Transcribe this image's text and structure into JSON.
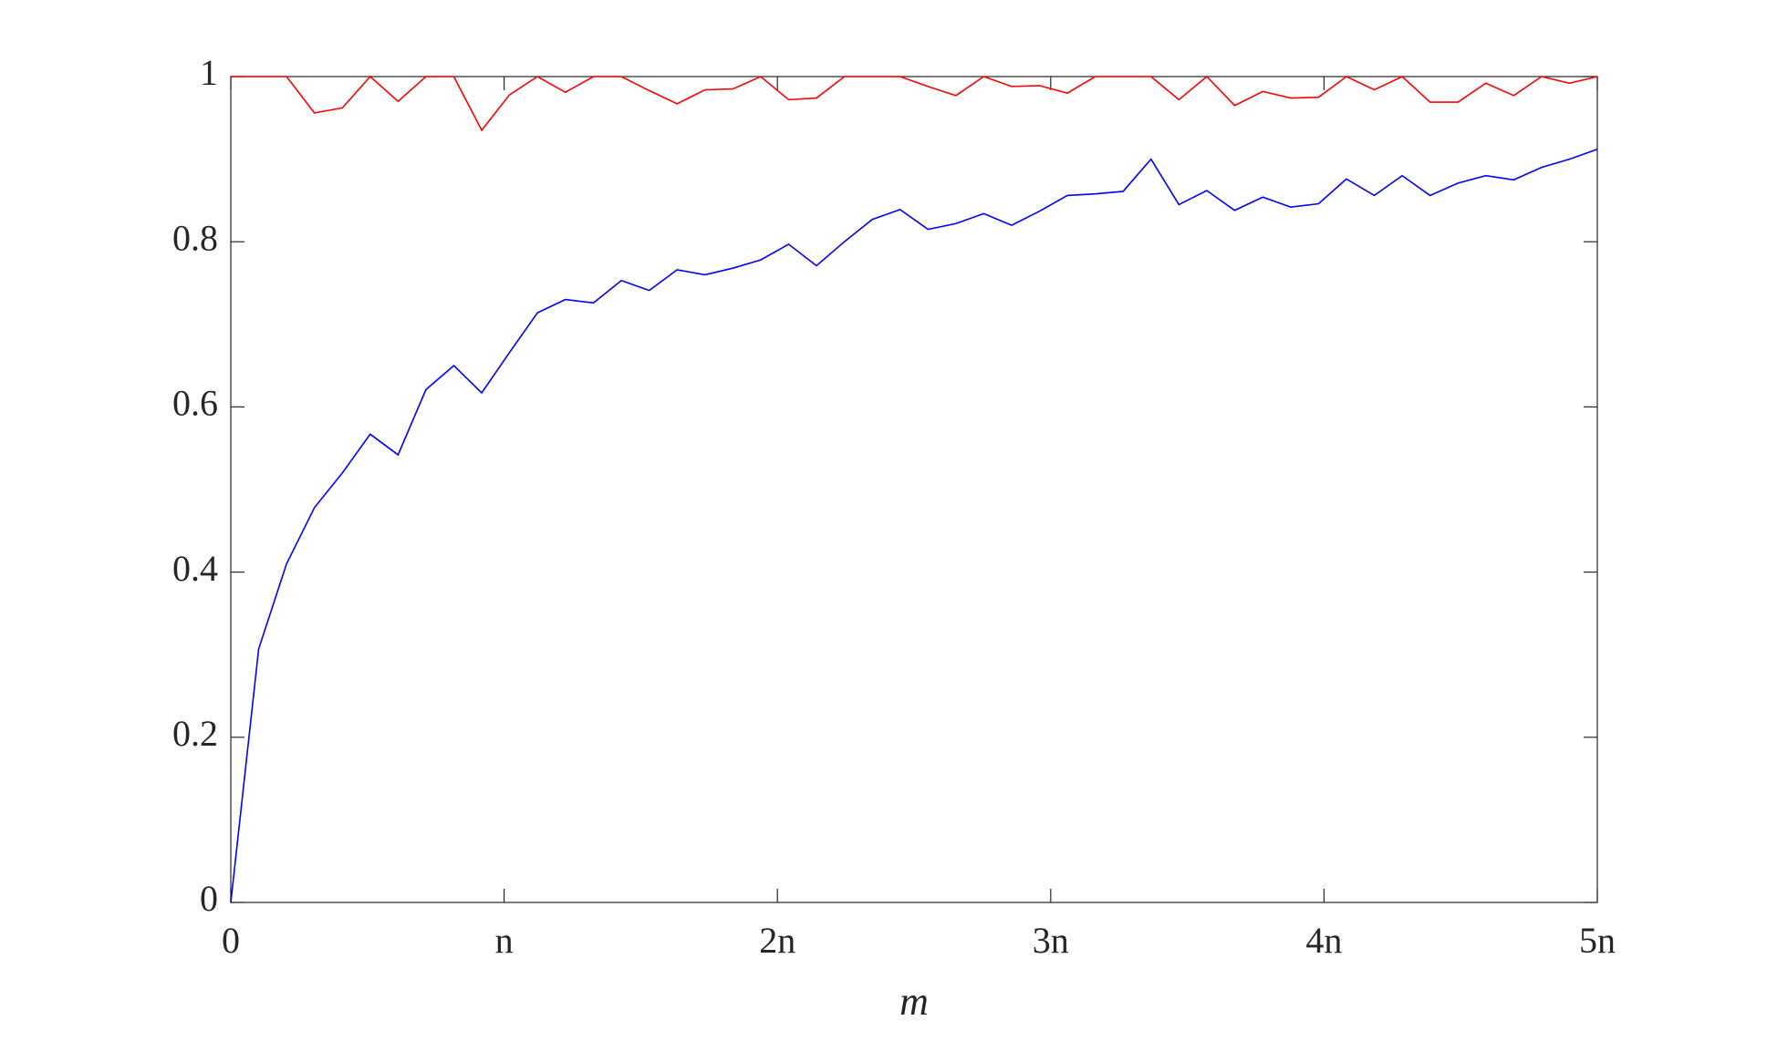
{
  "chart_data": {
    "type": "line",
    "xlabel": "m",
    "x": [
      0,
      0.102,
      0.204,
      0.306,
      0.408,
      0.51,
      0.612,
      0.714,
      0.816,
      0.918,
      1.02,
      1.122,
      1.224,
      1.327,
      1.429,
      1.531,
      1.633,
      1.735,
      1.837,
      1.939,
      2.041,
      2.143,
      2.245,
      2.347,
      2.449,
      2.551,
      2.653,
      2.755,
      2.857,
      2.959,
      3.061,
      3.163,
      3.265,
      3.367,
      3.469,
      3.571,
      3.673,
      3.776,
      3.878,
      3.98,
      4.082,
      4.184,
      4.286,
      4.388,
      4.49,
      4.592,
      4.694,
      4.796,
      4.898,
      5
    ],
    "series": [
      {
        "color": "#ff0000",
        "values": [
          1,
          1,
          1,
          0.956,
          0.962,
          1,
          0.97,
          1,
          1,
          0.935,
          0.978,
          1,
          0.981,
          1,
          1,
          0.983,
          0.967,
          0.984,
          0.985,
          1,
          0.972,
          0.974,
          1,
          1,
          1,
          0.988,
          0.977,
          1,
          0.988,
          0.989,
          0.98,
          1,
          1,
          1,
          0.972,
          1,
          0.965,
          0.982,
          0.974,
          0.975,
          1,
          0.984,
          1,
          0.969,
          0.969,
          0.992,
          0.977,
          1,
          0.992,
          1
        ]
      },
      {
        "color": "#0000ff",
        "values": [
          0,
          0.307,
          0.41,
          0.478,
          0.52,
          0.567,
          0.542,
          0.621,
          0.65,
          0.617,
          0.666,
          0.714,
          0.73,
          0.726,
          0.753,
          0.741,
          0.766,
          0.76,
          0.768,
          0.778,
          0.797,
          0.771,
          0.8,
          0.827,
          0.839,
          0.815,
          0.822,
          0.834,
          0.82,
          0.837,
          0.856,
          0.858,
          0.861,
          0.9,
          0.845,
          0.862,
          0.838,
          0.854,
          0.842,
          0.846,
          0.876,
          0.856,
          0.88,
          0.856,
          0.871,
          0.88,
          0.875,
          0.89,
          0.9,
          0.912
        ]
      }
    ],
    "xlim": [
      0,
      5
    ],
    "xticks": [
      0,
      {
        "value": 1,
        "label": "n"
      },
      {
        "value": 2,
        "label": "2n"
      },
      {
        "value": 3,
        "label": "3n"
      },
      {
        "value": 4,
        "label": "4n"
      },
      {
        "value": 5,
        "label": "5n"
      }
    ],
    "ylim": [
      0,
      1
    ],
    "yticks": [
      0,
      0.2,
      0.4,
      0.6,
      0.8,
      1
    ],
    "grid": false
  }
}
